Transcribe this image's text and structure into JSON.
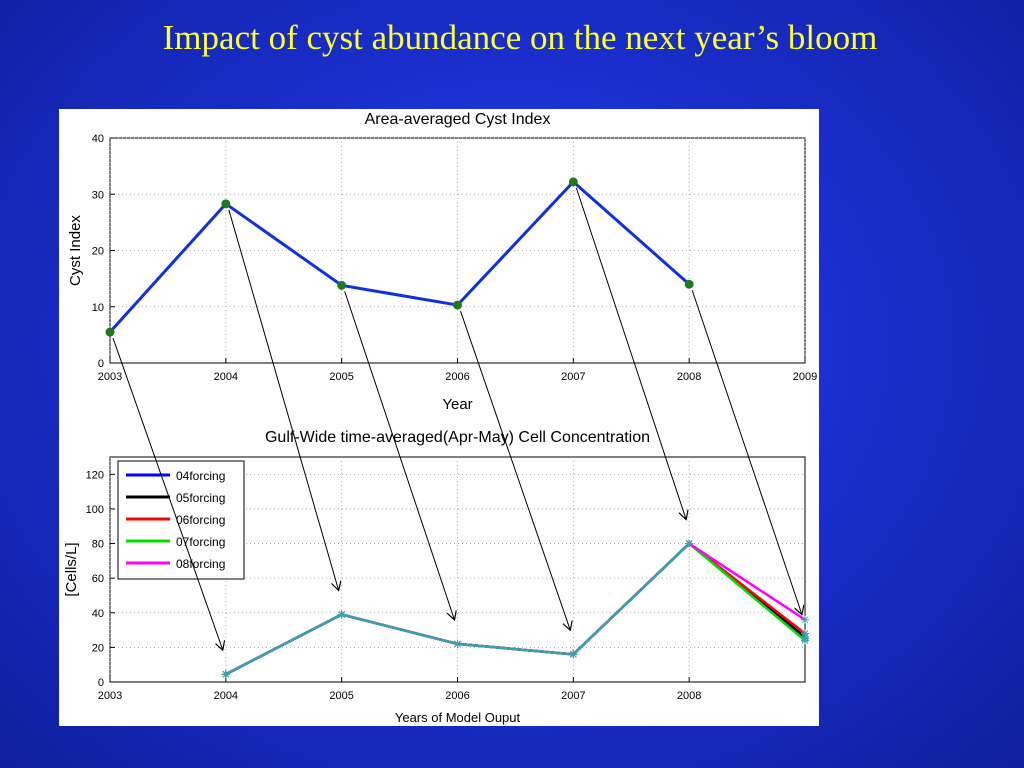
{
  "slide": {
    "title": "Impact of cyst abundance on the next year’s bloom"
  },
  "colors": {
    "background": "#1a2fcf",
    "title": "#ffff33"
  },
  "chart_data": [
    {
      "type": "line",
      "title": "Area-averaged Cyst Index",
      "xlabel": "Year",
      "ylabel": "Cyst Index",
      "xlim": [
        2003,
        2009
      ],
      "ylim": [
        0,
        40
      ],
      "xticks": [
        2003,
        2004,
        2005,
        2006,
        2007,
        2008,
        2009
      ],
      "yticks": [
        0,
        10,
        20,
        30,
        40
      ],
      "grid": true,
      "series": [
        {
          "color": "#1030e0",
          "marker_color": "#1f7a1f",
          "x": [
            2003,
            2004,
            2005,
            2006,
            2007,
            2008
          ],
          "y": [
            5.5,
            28.3,
            13.8,
            10.3,
            32.2,
            14.0
          ]
        }
      ]
    },
    {
      "type": "line",
      "title": "Gulf-Wide time-averaged(Apr-May)  Cell Concentration",
      "xlabel": "Years of Model Ouput",
      "ylabel": "[Cells/L]",
      "xlim": [
        2003,
        2009
      ],
      "ylim": [
        0,
        130
      ],
      "xticks": [
        2003,
        2004,
        2005,
        2006,
        2007,
        2008
      ],
      "yticks": [
        0,
        20,
        40,
        60,
        80,
        100,
        120
      ],
      "grid": true,
      "legend_position": "top-left",
      "series": [
        {
          "name": "04forcing",
          "color": "#0000ff",
          "x": [
            2004,
            2005,
            2006,
            2007,
            2008,
            2009
          ],
          "y": [
            4.5,
            39,
            22,
            16,
            80,
            25
          ]
        },
        {
          "name": "05forcing",
          "color": "#000000",
          "x": [
            2004,
            2005,
            2006,
            2007,
            2008,
            2009
          ],
          "y": [
            4.5,
            39,
            22,
            16,
            80,
            26
          ]
        },
        {
          "name": "06forcing",
          "color": "#ff0000",
          "x": [
            2004,
            2005,
            2006,
            2007,
            2008,
            2009
          ],
          "y": [
            4.5,
            39,
            22,
            16,
            80,
            28
          ]
        },
        {
          "name": "07forcing",
          "color": "#00dd00",
          "x": [
            2004,
            2005,
            2006,
            2007,
            2008,
            2009
          ],
          "y": [
            4.5,
            39,
            22,
            16,
            80,
            24
          ]
        },
        {
          "name": "08forcing",
          "color": "#ff00ff",
          "x": [
            2004,
            2005,
            2006,
            2007,
            2008,
            2009
          ],
          "y": [
            4.5,
            39,
            22,
            16,
            80,
            36
          ]
        }
      ],
      "overlay_color": "#3aa0b0"
    }
  ],
  "annotations": {
    "arrows": [
      {
        "from_year": 2003,
        "to_year": 2004
      },
      {
        "from_year": 2004,
        "to_year": 2005
      },
      {
        "from_year": 2005,
        "to_year": 2006
      },
      {
        "from_year": 2006,
        "to_year": 2007
      },
      {
        "from_year": 2007,
        "to_year": 2008
      },
      {
        "from_year": 2008,
        "to_year": 2009
      }
    ]
  }
}
